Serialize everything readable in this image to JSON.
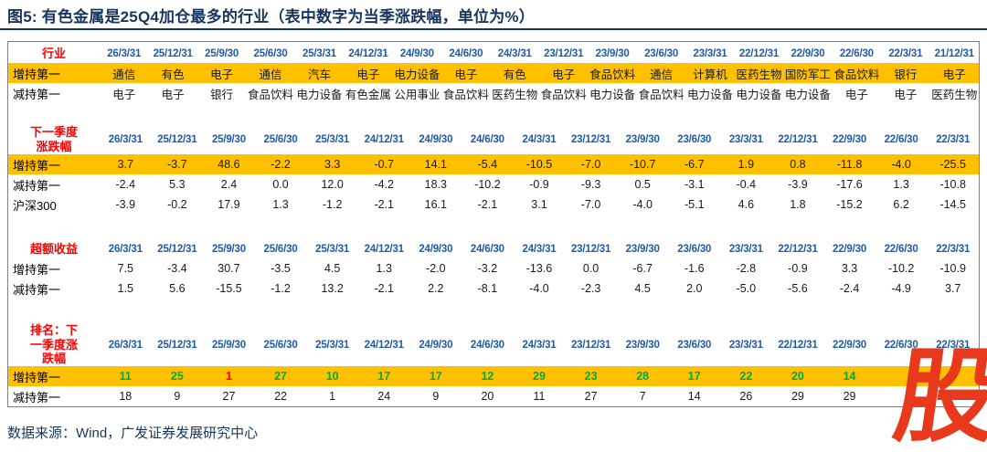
{
  "title": "图5: 有色金属是25Q4加仓最多的行业（表中数字为当季涨跌幅，单位为%）",
  "source_note": "数据来源：Wind，广发证券发展研究中心",
  "watermark": "股",
  "colors": {
    "title_navy": "#17365D",
    "date_blue": "#1F5BA8",
    "section_label_red": "#FF0000",
    "highlight_yellow": "#FFC000",
    "rank_green": "#00A84F",
    "rank_red": "#FF0000",
    "watermark_red": "#E8391C"
  },
  "chart_data": {
    "type": "table",
    "sections": [
      {
        "name": "industry",
        "label_lines": [
          "行业"
        ],
        "dates": [
          "26/3/31",
          "25/12/31",
          "25/9/30",
          "25/6/30",
          "25/3/31",
          "24/12/31",
          "24/9/30",
          "24/6/30",
          "24/3/31",
          "23/12/31",
          "23/9/30",
          "23/6/30",
          "23/3/31",
          "22/12/31",
          "22/9/30",
          "22/6/30",
          "22/3/31",
          "21/12/31"
        ],
        "rows": [
          {
            "label": "增持第一",
            "highlight": true,
            "values": [
              "通信",
              "有色",
              "电子",
              "通信",
              "汽车",
              "电子",
              "电力设备",
              "电子",
              "有色",
              "电子",
              "食品饮料",
              "通信",
              "计算机",
              "医药生物",
              "国防军工",
              "食品饮料",
              "银行",
              "电子"
            ]
          },
          {
            "label": "减持第一",
            "highlight": false,
            "values": [
              "电子",
              "电子",
              "银行",
              "食品饮料",
              "电力设备",
              "有色金属",
              "公用事业",
              "食品饮料",
              "医药生物",
              "食品饮料",
              "电力设备",
              "食品饮料",
              "电力设备",
              "电力设备",
              "电力设备",
              "电子",
              "电子",
              "医药生物"
            ]
          }
        ]
      },
      {
        "name": "next-quarter-change",
        "label_lines": [
          "下一季度",
          "涨跌幅"
        ],
        "dates": [
          "26/3/31",
          "25/12/31",
          "25/9/30",
          "25/6/30",
          "25/3/31",
          "24/12/31",
          "24/9/30",
          "24/6/30",
          "24/3/31",
          "23/12/31",
          "23/9/30",
          "23/6/30",
          "23/3/31",
          "22/12/31",
          "22/9/30",
          "22/6/30",
          "22/3/31"
        ],
        "rows": [
          {
            "label": "增持第一",
            "highlight": true,
            "values": [
              "3.7",
              "-3.7",
              "48.6",
              "-2.2",
              "3.3",
              "-0.7",
              "14.1",
              "-5.4",
              "-10.5",
              "-7.0",
              "-10.7",
              "-6.7",
              "1.9",
              "0.8",
              "-11.8",
              "-4.0",
              "-25.5"
            ]
          },
          {
            "label": "减持第一",
            "highlight": false,
            "values": [
              "-2.4",
              "5.3",
              "2.4",
              "0.0",
              "12.0",
              "-4.2",
              "18.3",
              "-10.2",
              "-0.9",
              "-9.3",
              "0.5",
              "-3.1",
              "-0.4",
              "-3.9",
              "-17.6",
              "1.3",
              "-10.8"
            ]
          },
          {
            "label": "沪深300",
            "highlight": false,
            "values": [
              "-3.9",
              "-0.2",
              "17.9",
              "1.3",
              "-1.2",
              "-2.1",
              "16.1",
              "-2.1",
              "3.1",
              "-7.0",
              "-4.0",
              "-5.1",
              "4.6",
              "1.8",
              "-15.2",
              "6.2",
              "-14.5"
            ]
          }
        ]
      },
      {
        "name": "excess-return",
        "label_lines": [
          "超额收益"
        ],
        "dates": [
          "26/3/31",
          "25/12/31",
          "25/9/30",
          "25/6/30",
          "25/3/31",
          "24/12/31",
          "24/9/30",
          "24/6/30",
          "24/3/31",
          "23/12/31",
          "23/9/30",
          "23/6/30",
          "23/3/31",
          "22/12/31",
          "22/9/30",
          "22/6/30",
          "22/3/31"
        ],
        "rows": [
          {
            "label": "增持第一",
            "highlight": false,
            "values": [
              "7.5",
              "-3.4",
              "30.7",
              "-3.5",
              "4.5",
              "1.3",
              "-2.0",
              "-3.2",
              "-13.6",
              "0.0",
              "-6.7",
              "-1.6",
              "-2.8",
              "-0.9",
              "3.3",
              "-10.2",
              "-10.9"
            ]
          },
          {
            "label": "减持第一",
            "highlight": false,
            "values": [
              "1.5",
              "5.6",
              "-15.5",
              "-1.2",
              "13.2",
              "-2.1",
              "2.2",
              "-8.1",
              "-4.0",
              "-2.3",
              "4.5",
              "2.0",
              "-5.0",
              "-5.6",
              "-2.4",
              "-4.9",
              "3.7"
            ]
          }
        ]
      },
      {
        "name": "rank-next-quarter-change",
        "label_lines": [
          "排名：下",
          "一季度涨",
          "跌幅"
        ],
        "dates": [
          "26/3/31",
          "25/12/31",
          "25/9/30",
          "25/6/30",
          "25/3/31",
          "24/12/31",
          "24/9/30",
          "24/6/30",
          "24/3/31",
          "23/12/31",
          "23/9/30",
          "23/6/30",
          "23/3/31",
          "22/12/31",
          "22/9/30",
          "22/6/30",
          "22/3/31"
        ],
        "rows": [
          {
            "label": "增持第一",
            "highlight": true,
            "values": [
              "11",
              "25",
              "1",
              "27",
              "10",
              "17",
              "17",
              "12",
              "29",
              "23",
              "28",
              "17",
              "22",
              "20",
              "14",
              "",
              ""
            ],
            "value_colors": [
              "green",
              "green",
              "red",
              "green",
              "green",
              "green",
              "green",
              "green",
              "green",
              "green",
              "green",
              "green",
              "green",
              "green",
              "green",
              "",
              ""
            ]
          },
          {
            "label": "减持第一",
            "highlight": false,
            "values": [
              "18",
              "9",
              "27",
              "22",
              "1",
              "24",
              "9",
              "20",
              "11",
              "27",
              "7",
              "14",
              "26",
              "29",
              "29",
              "",
              ""
            ]
          }
        ]
      }
    ]
  }
}
